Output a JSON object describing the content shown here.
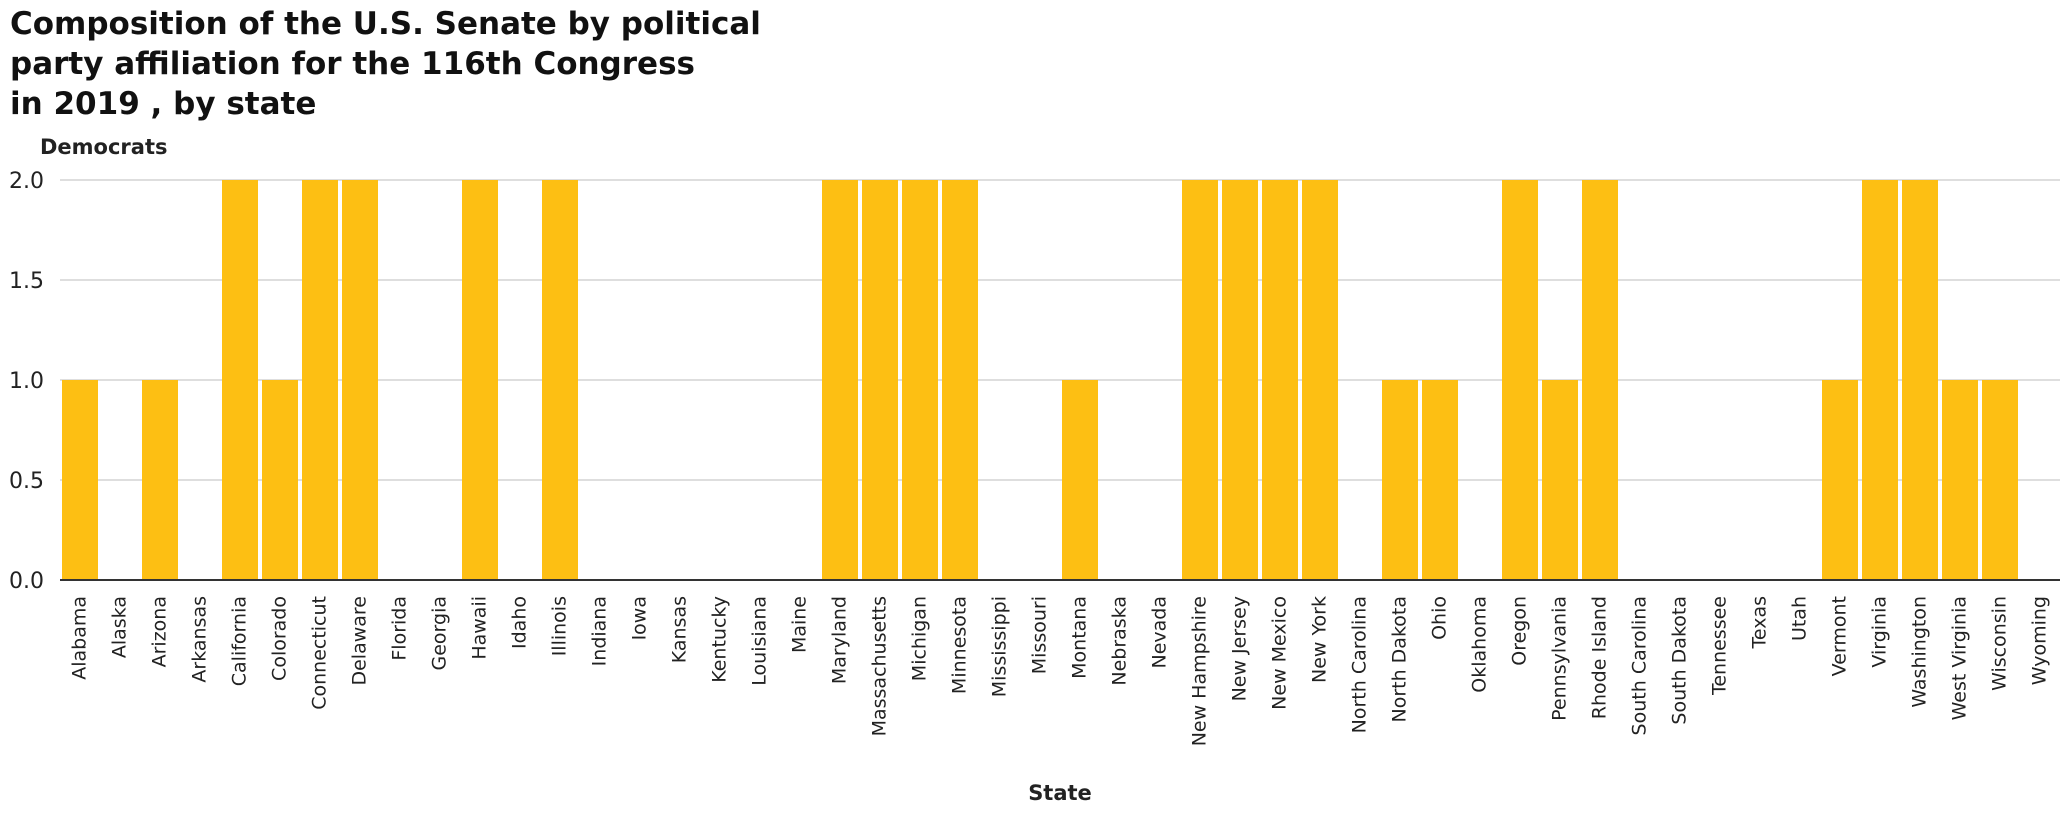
{
  "title_lines": [
    "Composition of the U.S. Senate by political",
    "party affiliation for the 116th Congress",
    "in 2019 , by state"
  ],
  "chart_data": {
    "type": "bar",
    "title": "Composition of the U.S. Senate by political party affiliation for the 116th Congress in 2019 , by state",
    "xlabel": "State",
    "ylabel": "Democrats",
    "ylim": [
      0,
      2
    ],
    "yticks": [
      "0.0",
      "0.5",
      "1.0",
      "1.5",
      "2.0"
    ],
    "grid": "horizontal",
    "bar_color": "#FDBF13",
    "categories": [
      "Alabama",
      "Alaska",
      "Arizona",
      "Arkansas",
      "California",
      "Colorado",
      "Connecticut",
      "Delaware",
      "Florida",
      "Georgia",
      "Hawaii",
      "Idaho",
      "Illinois",
      "Indiana",
      "Iowa",
      "Kansas",
      "Kentucky",
      "Louisiana",
      "Maine",
      "Maryland",
      "Massachusetts",
      "Michigan",
      "Minnesota",
      "Mississippi",
      "Missouri",
      "Montana",
      "Nebraska",
      "Nevada",
      "New Hampshire",
      "New Jersey",
      "New Mexico",
      "New York",
      "North Carolina",
      "North Dakota",
      "Ohio",
      "Oklahoma",
      "Oregon",
      "Pennsylvania",
      "Rhode Island",
      "South Carolina",
      "South Dakota",
      "Tennessee",
      "Texas",
      "Utah",
      "Vermont",
      "Virginia",
      "Washington",
      "West Virginia",
      "Wisconsin",
      "Wyoming"
    ],
    "values": [
      1,
      0,
      1,
      0,
      2,
      1,
      2,
      2,
      0,
      0,
      2,
      0,
      2,
      0,
      0,
      0,
      0,
      0,
      0,
      2,
      2,
      2,
      2,
      0,
      0,
      1,
      0,
      0,
      2,
      2,
      2,
      2,
      0,
      1,
      1,
      0,
      2,
      1,
      2,
      0,
      0,
      0,
      0,
      0,
      1,
      2,
      2,
      1,
      1,
      0
    ]
  }
}
